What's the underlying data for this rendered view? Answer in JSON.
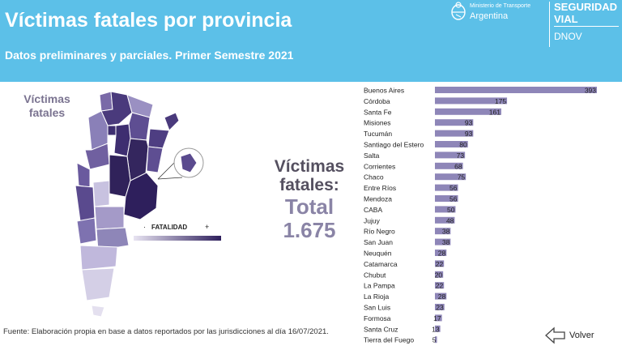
{
  "header": {
    "title": "Víctimas fatales por provincia",
    "subtitle": "Datos preliminares y parciales. Primer Semestre 2021",
    "ministry_line1": "Ministerio de Transporte",
    "ministry_line2": "Argentina",
    "brand_line1": "SEGURIDAD",
    "brand_line2": "VIAL",
    "brand_line3": "DNOV"
  },
  "map": {
    "label_line1": "Víctimas",
    "label_line2": "fatales",
    "legend_text": "FATALIDAD"
  },
  "summary": {
    "line1": "Víctimas",
    "line2": "fatales:",
    "line3": "Total",
    "line4": "1.675"
  },
  "footer": {
    "source": "Fuente: Elaboración propia en base a datos reportados por las jurisdicciones al día 16/07/2021.",
    "back_label": "Volver"
  },
  "colors": {
    "header_bg": "#5cc0e8",
    "bar": "#8e86b8",
    "map_dark": "#3a2c6a",
    "map_light": "#d8d4e8"
  },
  "chart_data": {
    "type": "bar",
    "orientation": "horizontal",
    "categories": [
      "Buenos Aires",
      "Córdoba",
      "Santa Fe",
      "Misiones",
      "Tucumán",
      "Santiago del Estero",
      "Salta",
      "Corrientes",
      "Chaco",
      "Entre Ríos",
      "Mendoza",
      "CABA",
      "Jujuy",
      "Río Negro",
      "San Juan",
      "Neuquén",
      "Catamarca",
      "Chubut",
      "La Pampa",
      "La Rioja",
      "San Luis",
      "Formosa",
      "Santa Cruz",
      "Tierra del Fuego"
    ],
    "values": [
      393,
      175,
      161,
      93,
      93,
      80,
      73,
      68,
      75,
      56,
      56,
      50,
      48,
      38,
      38,
      28,
      22,
      20,
      22,
      28,
      23,
      17,
      13,
      5
    ],
    "title": "",
    "xlabel": "",
    "ylabel": "",
    "data_labels": true,
    "grid": false,
    "legend": "none"
  }
}
